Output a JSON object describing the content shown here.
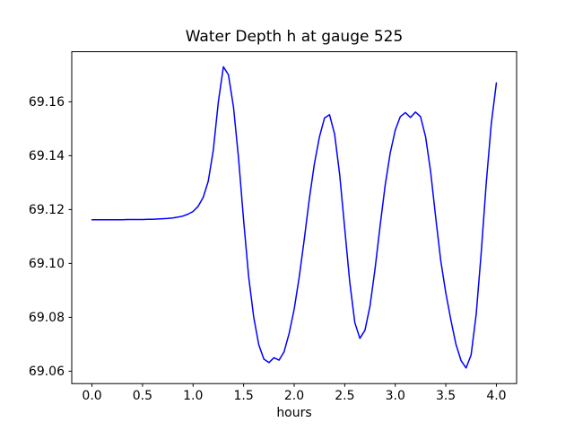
{
  "figure": {
    "background": "#ffffff"
  },
  "chart_data": {
    "type": "line",
    "title": "Water Depth h at gauge 525",
    "xlabel": "hours",
    "ylabel": "",
    "line_color": "#0000ff",
    "frame_color": "#000000",
    "grid": false,
    "legend": null,
    "xlim": [
      -0.2,
      4.2
    ],
    "ylim": [
      69.0554,
      69.1786
    ],
    "xticks": [
      0.0,
      0.5,
      1.0,
      1.5,
      2.0,
      2.5,
      3.0,
      3.5,
      4.0
    ],
    "xtick_labels": [
      "0.0",
      "0.5",
      "1.0",
      "1.5",
      "2.0",
      "2.5",
      "3.0",
      "3.5",
      "4.0"
    ],
    "yticks": [
      69.06,
      69.08,
      69.1,
      69.12,
      69.14,
      69.16
    ],
    "ytick_labels": [
      "69.06",
      "69.08",
      "69.10",
      "69.12",
      "69.14",
      "69.16"
    ],
    "x": [
      0.0,
      0.05,
      0.1,
      0.15,
      0.2,
      0.25,
      0.3,
      0.35,
      0.4,
      0.45,
      0.5,
      0.55,
      0.6,
      0.65,
      0.7,
      0.75,
      0.8,
      0.85,
      0.9,
      0.95,
      1.0,
      1.05,
      1.1,
      1.15,
      1.2,
      1.25,
      1.3,
      1.35,
      1.4,
      1.45,
      1.5,
      1.55,
      1.6,
      1.65,
      1.7,
      1.75,
      1.8,
      1.85,
      1.9,
      1.95,
      2.0,
      2.05,
      2.1,
      2.15,
      2.2,
      2.25,
      2.3,
      2.35,
      2.4,
      2.45,
      2.5,
      2.55,
      2.6,
      2.65,
      2.7,
      2.75,
      2.8,
      2.85,
      2.9,
      2.95,
      3.0,
      3.05,
      3.1,
      3.15,
      3.2,
      3.25,
      3.3,
      3.35,
      3.4,
      3.45,
      3.5,
      3.55,
      3.6,
      3.65,
      3.7,
      3.75,
      3.8,
      3.85,
      3.9,
      3.95,
      4.0
    ],
    "y": [
      69.1162,
      69.1162,
      69.1162,
      69.1162,
      69.1162,
      69.1162,
      69.1162,
      69.1163,
      69.1163,
      69.1163,
      69.1163,
      69.1164,
      69.1164,
      69.1165,
      69.1166,
      69.1167,
      69.1169,
      69.1172,
      69.1176,
      69.1183,
      69.1193,
      69.1212,
      69.1245,
      69.1305,
      69.142,
      69.16,
      69.173,
      69.17,
      69.158,
      69.139,
      69.116,
      69.095,
      69.08,
      69.0698,
      69.0645,
      69.0632,
      69.065,
      69.0641,
      69.0672,
      69.074,
      69.083,
      69.095,
      69.109,
      69.124,
      69.137,
      69.147,
      69.154,
      69.1552,
      69.148,
      69.133,
      69.113,
      69.093,
      69.078,
      69.0722,
      69.0752,
      69.0842,
      69.098,
      69.114,
      69.129,
      69.141,
      69.1495,
      69.1545,
      69.156,
      69.1542,
      69.1562,
      69.1545,
      69.147,
      69.134,
      69.117,
      69.101,
      69.089,
      69.079,
      69.07,
      69.064,
      69.0612,
      69.066,
      69.081,
      69.104,
      69.13,
      69.152,
      69.167
    ]
  }
}
